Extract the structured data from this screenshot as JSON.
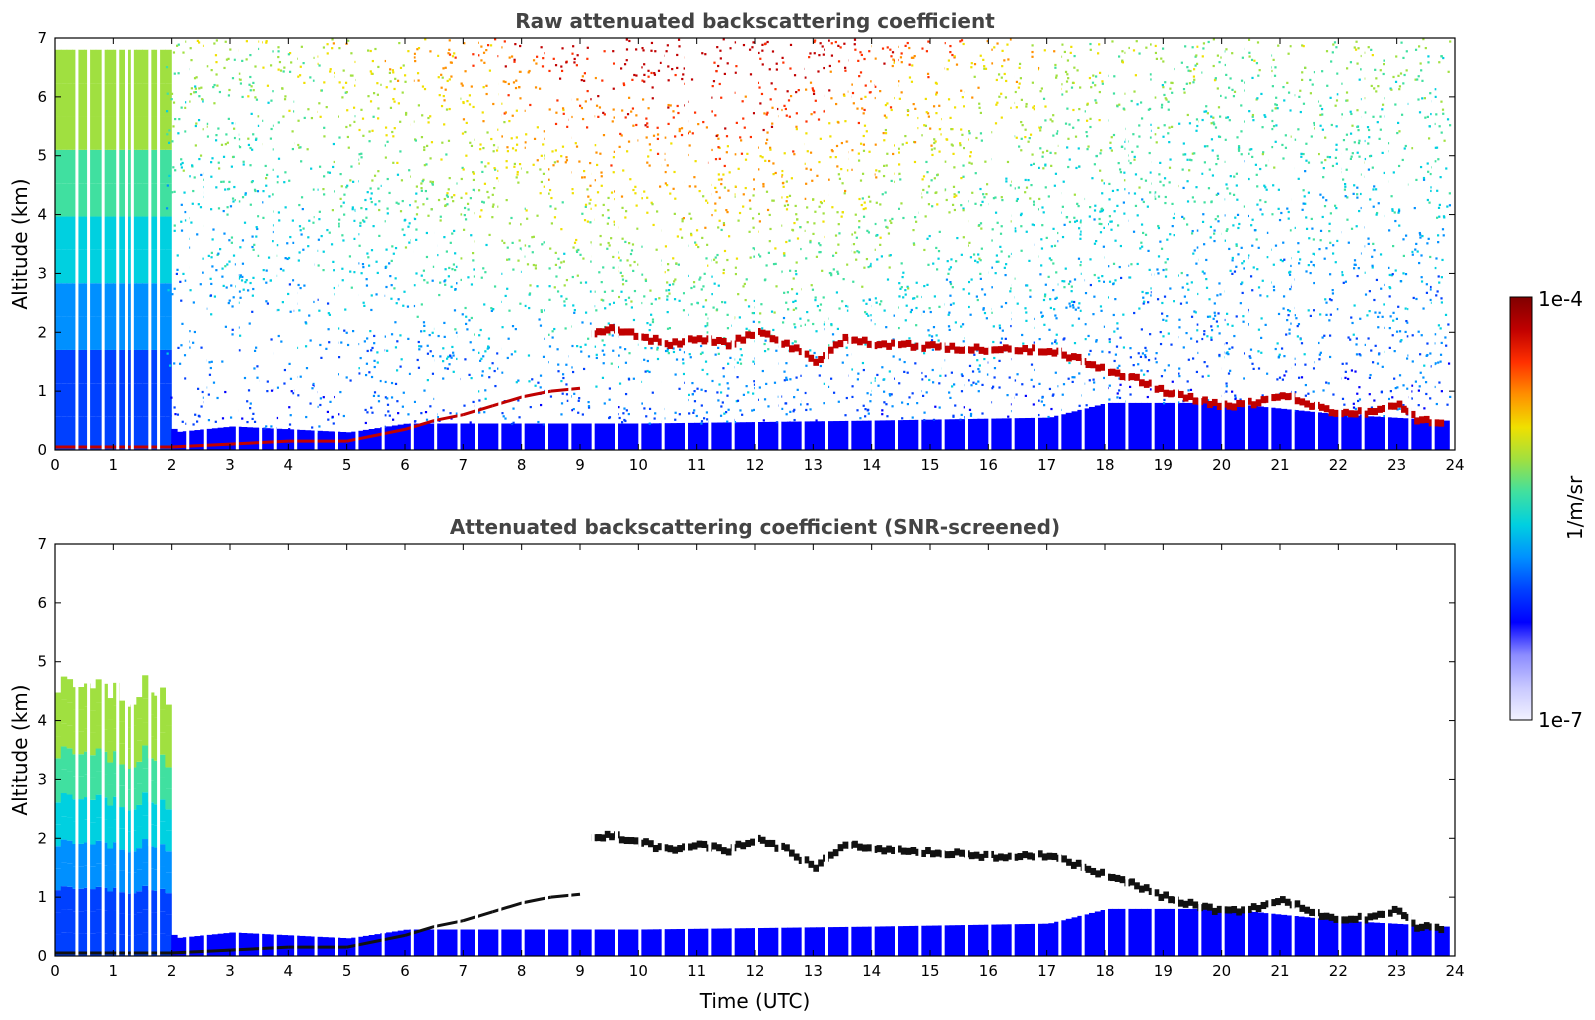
{
  "chart_data": [
    {
      "type": "heatmap",
      "title": "Raw attenuated backscattering coefficient",
      "xlabel": "",
      "ylabel": "Altitude (km)",
      "xlim": [
        0,
        24
      ],
      "ylim": [
        0,
        7
      ],
      "xticks": [
        "0",
        "1",
        "2",
        "3",
        "4",
        "5",
        "6",
        "7",
        "8",
        "9",
        "10",
        "11",
        "12",
        "13",
        "14",
        "15",
        "16",
        "17",
        "18",
        "19",
        "20",
        "21",
        "22",
        "23",
        "24"
      ],
      "yticks": [
        "0",
        "1",
        "2",
        "3",
        "4",
        "5",
        "6",
        "7"
      ],
      "aerosol_layer_top_km": [
        [
          0,
          0.05
        ],
        [
          1,
          0.05
        ],
        [
          2,
          0.05
        ],
        [
          3,
          0.1
        ],
        [
          4,
          0.15
        ],
        [
          5,
          0.15
        ],
        [
          6,
          0.35
        ],
        [
          6.5,
          0.5
        ],
        [
          7,
          0.6
        ],
        [
          7.5,
          0.75
        ],
        [
          8,
          0.9
        ],
        [
          8.5,
          1.0
        ],
        [
          9,
          1.05
        ]
      ],
      "cloud_layers_km": [
        [
          9.2,
          2.0
        ],
        [
          9.5,
          2.05
        ],
        [
          10.5,
          1.8
        ],
        [
          11,
          1.9
        ],
        [
          11.5,
          1.8
        ],
        [
          12,
          2.0
        ],
        [
          12.5,
          1.8
        ],
        [
          13,
          1.5
        ],
        [
          13.5,
          1.9
        ],
        [
          14,
          1.8
        ],
        [
          15,
          1.75
        ],
        [
          16,
          1.7
        ],
        [
          17,
          1.7
        ],
        [
          17.5,
          1.55
        ],
        [
          18,
          1.35
        ],
        [
          18.5,
          1.2
        ],
        [
          19,
          1.0
        ],
        [
          19.5,
          0.85
        ],
        [
          20,
          0.75
        ],
        [
          20.5,
          0.8
        ],
        [
          21,
          0.95
        ],
        [
          21.5,
          0.75
        ],
        [
          22,
          0.6
        ],
        [
          22.5,
          0.65
        ],
        [
          23,
          0.8
        ],
        [
          23.3,
          0.5
        ],
        [
          23.8,
          0.45
        ]
      ],
      "boundary_layer_top_km": [
        [
          0,
          1.0
        ],
        [
          1.9,
          1.0
        ],
        [
          2,
          0.3
        ],
        [
          3,
          0.4
        ],
        [
          4,
          0.35
        ],
        [
          5,
          0.3
        ],
        [
          6,
          0.45
        ],
        [
          10,
          0.45
        ],
        [
          14,
          0.5
        ],
        [
          17,
          0.55
        ],
        [
          18,
          0.8
        ],
        [
          20,
          0.8
        ],
        [
          22,
          0.6
        ],
        [
          23.8,
          0.5
        ]
      ]
    },
    {
      "type": "heatmap",
      "title": "Attenuated backscattering coefficient (SNR-screened)",
      "xlabel": "Time (UTC)",
      "ylabel": "Altitude (km)",
      "xlim": [
        0,
        24
      ],
      "ylim": [
        0,
        7
      ],
      "xticks": [
        "0",
        "1",
        "2",
        "3",
        "4",
        "5",
        "6",
        "7",
        "8",
        "9",
        "10",
        "11",
        "12",
        "13",
        "14",
        "15",
        "16",
        "17",
        "18",
        "19",
        "20",
        "21",
        "22",
        "23",
        "24"
      ],
      "yticks": [
        "0",
        "1",
        "2",
        "3",
        "4",
        "5",
        "6",
        "7"
      ]
    }
  ],
  "colorbar": {
    "label": "1/m/sr",
    "min_label": "1e-7",
    "max_label": "1e-4",
    "scale": "log",
    "colors": [
      "#f2f2ff",
      "#c8c8ff",
      "#8c8cff",
      "#0000ff",
      "#0040ff",
      "#0090ff",
      "#00d0e0",
      "#40e0a0",
      "#a0e040",
      "#f0e000",
      "#ff9000",
      "#ff3000",
      "#c00000",
      "#800000"
    ]
  }
}
